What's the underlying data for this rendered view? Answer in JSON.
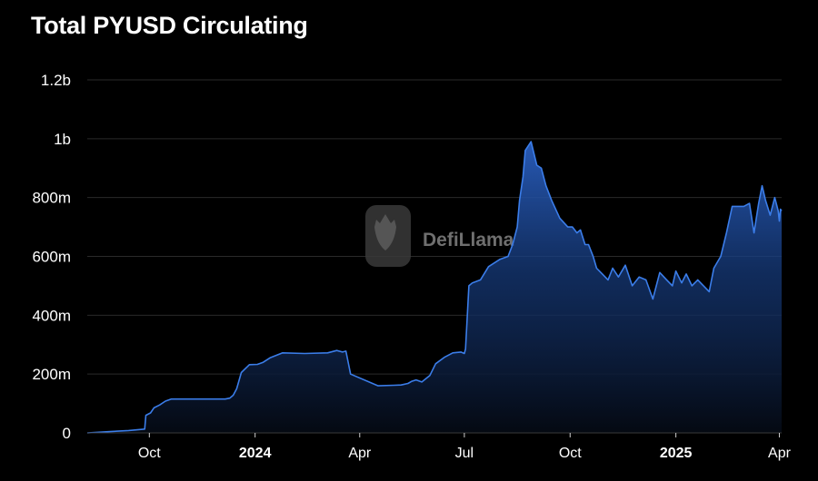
{
  "title": "Total PYUSD Circulating",
  "watermark": "DefiLlama",
  "colors": {
    "background": "#000000",
    "line": "#3b7de9",
    "grid": "#2a2a2a"
  },
  "chart_data": {
    "type": "area",
    "title": "Total PYUSD Circulating",
    "xlabel": "",
    "ylabel": "",
    "ylim": [
      0,
      1200000000
    ],
    "xlim": [
      "2023-08-08",
      "2025-04-03"
    ],
    "grid": true,
    "y_ticks": [
      {
        "value": 0,
        "label": "0"
      },
      {
        "value": 200000000,
        "label": "200m"
      },
      {
        "value": 400000000,
        "label": "400m"
      },
      {
        "value": 600000000,
        "label": "600m"
      },
      {
        "value": 800000000,
        "label": "800m"
      },
      {
        "value": 1000000000,
        "label": "1b"
      },
      {
        "value": 1200000000,
        "label": "1.2b"
      }
    ],
    "x_ticks": [
      {
        "date": "2023-10-01",
        "label": "Oct",
        "bold": false
      },
      {
        "date": "2024-01-01",
        "label": "2024",
        "bold": true
      },
      {
        "date": "2024-04-01",
        "label": "Apr",
        "bold": false
      },
      {
        "date": "2024-07-01",
        "label": "Jul",
        "bold": false
      },
      {
        "date": "2024-10-01",
        "label": "Oct",
        "bold": false
      },
      {
        "date": "2025-01-01",
        "label": "2025",
        "bold": true
      },
      {
        "date": "2025-04-01",
        "label": "Apr",
        "bold": false
      }
    ],
    "series": [
      {
        "x": [
          "2023-08-08",
          "2023-08-26",
          "2023-09-13",
          "2023-09-27",
          "2023-09-28",
          "2023-10-02",
          "2023-10-05",
          "2023-10-10",
          "2023-10-15",
          "2023-10-20",
          "2023-10-25",
          "2023-11-15",
          "2023-12-06",
          "2023-12-10",
          "2023-12-13",
          "2023-12-16",
          "2023-12-20",
          "2023-12-27",
          "2024-01-03",
          "2024-01-08",
          "2024-01-14",
          "2024-01-25",
          "2024-02-13",
          "2024-03-04",
          "2024-03-12",
          "2024-03-17",
          "2024-03-20",
          "2024-03-24",
          "2024-04-17",
          "2024-05-01",
          "2024-05-07",
          "2024-05-13",
          "2024-05-16",
          "2024-05-20",
          "2024-05-25",
          "2024-06-01",
          "2024-06-06",
          "2024-06-14",
          "2024-06-21",
          "2024-06-28",
          "2024-07-01",
          "2024-07-02",
          "2024-07-05",
          "2024-07-08",
          "2024-07-15",
          "2024-07-22",
          "2024-08-01",
          "2024-08-08",
          "2024-08-12",
          "2024-08-16",
          "2024-08-18",
          "2024-08-21",
          "2024-08-23",
          "2024-08-28",
          "2024-09-02",
          "2024-09-06",
          "2024-09-10",
          "2024-09-15",
          "2024-09-22",
          "2024-09-29",
          "2024-10-03",
          "2024-10-07",
          "2024-10-10",
          "2024-10-14",
          "2024-10-17",
          "2024-10-21",
          "2024-10-24",
          "2024-10-29",
          "2024-11-03",
          "2024-11-07",
          "2024-11-12",
          "2024-11-18",
          "2024-11-24",
          "2024-11-30",
          "2024-12-06",
          "2024-12-12",
          "2024-12-18",
          "2024-12-24",
          "2024-12-29",
          "2025-01-01",
          "2025-01-06",
          "2025-01-10",
          "2025-01-15",
          "2025-01-20",
          "2025-01-25",
          "2025-01-30",
          "2025-02-03",
          "2025-02-09",
          "2025-02-14",
          "2025-02-19",
          "2025-02-24",
          "2025-03-01",
          "2025-03-06",
          "2025-03-10",
          "2025-03-14",
          "2025-03-17",
          "2025-03-20",
          "2025-03-24",
          "2025-03-28",
          "2025-03-31",
          "2025-04-01",
          "2025-04-02",
          "2025-04-03"
        ],
        "y": [
          0,
          4000000,
          8000000,
          13000000,
          60000000,
          68000000,
          85000000,
          95000000,
          108000000,
          115000000,
          115000000,
          115000000,
          115000000,
          118000000,
          128000000,
          150000000,
          205000000,
          232000000,
          233000000,
          240000000,
          255000000,
          272000000,
          270000000,
          272000000,
          280000000,
          275000000,
          278000000,
          200000000,
          160000000,
          162000000,
          163000000,
          168000000,
          175000000,
          180000000,
          173000000,
          195000000,
          235000000,
          258000000,
          272000000,
          275000000,
          270000000,
          285000000,
          500000000,
          510000000,
          520000000,
          565000000,
          590000000,
          600000000,
          640000000,
          700000000,
          790000000,
          870000000,
          960000000,
          990000000,
          910000000,
          900000000,
          840000000,
          790000000,
          730000000,
          700000000,
          700000000,
          680000000,
          690000000,
          640000000,
          640000000,
          600000000,
          560000000,
          540000000,
          520000000,
          560000000,
          530000000,
          570000000,
          500000000,
          530000000,
          520000000,
          455000000,
          545000000,
          520000000,
          500000000,
          550000000,
          510000000,
          540000000,
          500000000,
          520000000,
          500000000,
          480000000,
          560000000,
          600000000,
          680000000,
          770000000,
          770000000,
          770000000,
          780000000,
          680000000,
          780000000,
          840000000,
          790000000,
          740000000,
          800000000,
          755000000,
          720000000,
          760000000,
          755000000
        ]
      }
    ]
  }
}
